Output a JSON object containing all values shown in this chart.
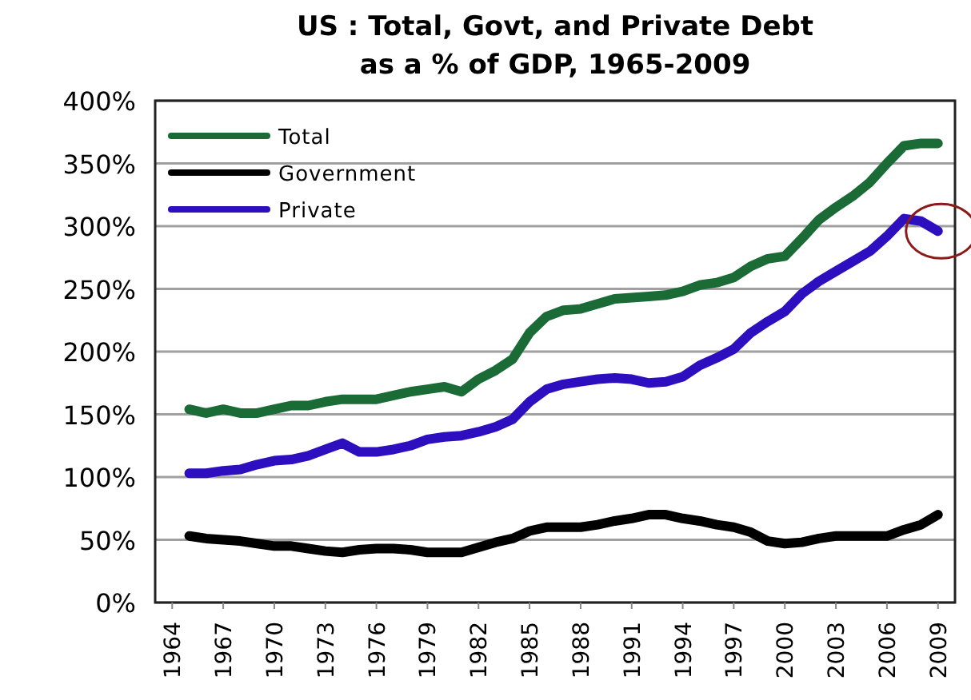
{
  "chart_data": {
    "type": "line",
    "title": "US : Total, Govt, and Private Debt as a % of GDP, 1965-2009",
    "x": [
      1965,
      1966,
      1967,
      1968,
      1969,
      1970,
      1971,
      1972,
      1973,
      1974,
      1975,
      1976,
      1977,
      1978,
      1979,
      1980,
      1981,
      1982,
      1983,
      1984,
      1985,
      1986,
      1987,
      1988,
      1989,
      1990,
      1991,
      1992,
      1993,
      1994,
      1995,
      1996,
      1997,
      1998,
      1999,
      2000,
      2001,
      2002,
      2003,
      2004,
      2005,
      2006,
      2007,
      2008,
      2009
    ],
    "series": [
      {
        "name": "Total",
        "color": "#1a6b35",
        "values": [
          154,
          151,
          154,
          151,
          151,
          154,
          157,
          157,
          160,
          162,
          162,
          162,
          165,
          168,
          170,
          172,
          168,
          178,
          185,
          194,
          215,
          228,
          233,
          234,
          238,
          242,
          243,
          244,
          245,
          248,
          253,
          255,
          259,
          268,
          274,
          276,
          290,
          305,
          315,
          324,
          335,
          350,
          364,
          366,
          366
        ]
      },
      {
        "name": "Government",
        "color": "#000000",
        "values": [
          53,
          51,
          50,
          49,
          47,
          45,
          45,
          43,
          41,
          40,
          42,
          43,
          43,
          42,
          40,
          40,
          40,
          44,
          48,
          51,
          57,
          60,
          60,
          60,
          62,
          65,
          67,
          70,
          70,
          67,
          65,
          62,
          60,
          56,
          49,
          47,
          48,
          51,
          53,
          53,
          53,
          53,
          58,
          62,
          70
        ]
      },
      {
        "name": "Private",
        "color": "#2e0fbf",
        "values": [
          103,
          103,
          105,
          106,
          110,
          113,
          114,
          117,
          122,
          127,
          120,
          120,
          122,
          125,
          130,
          132,
          133,
          136,
          140,
          146,
          160,
          170,
          174,
          176,
          178,
          179,
          178,
          175,
          176,
          180,
          189,
          195,
          202,
          215,
          224,
          232,
          246,
          256,
          264,
          272,
          280,
          292,
          306,
          304,
          296
        ]
      }
    ],
    "xlim": [
      1963,
      2010
    ],
    "xticks": [
      1964,
      1967,
      1970,
      1973,
      1976,
      1979,
      1982,
      1985,
      1988,
      1991,
      1994,
      1997,
      2000,
      2003,
      2006,
      2009
    ],
    "ylim": [
      0,
      400
    ],
    "yticks": [
      {
        "value": 0,
        "label": "0%"
      },
      {
        "value": 50,
        "label": "50%"
      },
      {
        "value": 100,
        "label": "100%"
      },
      {
        "value": 150,
        "label": "150%"
      },
      {
        "value": 200,
        "label": "200%"
      },
      {
        "value": 250,
        "label": "250%"
      },
      {
        "value": 300,
        "label": "300%"
      },
      {
        "value": 350,
        "label": "350%"
      },
      {
        "value": 400,
        "label": "400%"
      }
    ],
    "grid": "y",
    "legend": "top left",
    "marker": "none",
    "line_style": "solid"
  }
}
